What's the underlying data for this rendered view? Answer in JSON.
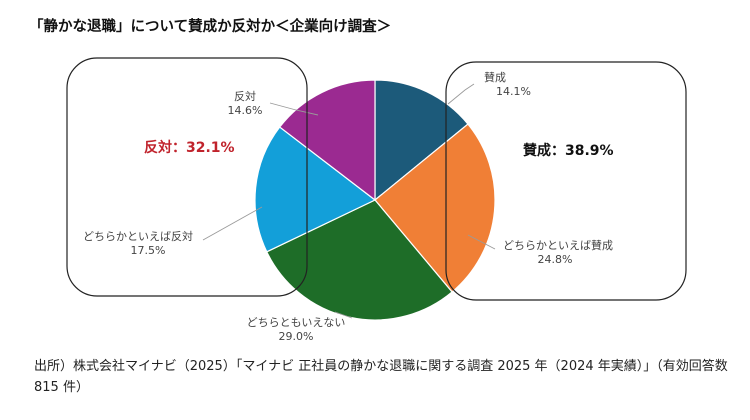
{
  "title": "「静かな退職」について賛成か反対か＜企業向け調査＞",
  "source": "出所）株式会社マイナビ（2025）「マイナビ 正社員の静かな退職に関する調査 2025 年（2024 年実績）」（有効回答数 815 件）",
  "chart_data": {
    "type": "pie",
    "title": "「静かな退職」について賛成か反対か＜企業向け調査＞",
    "unit": "%",
    "slices": [
      {
        "label": "賛成",
        "value": 14.1,
        "value_text": "14.1%",
        "color": "#1c5a7a"
      },
      {
        "label": "どちらかといえば賛成",
        "value": 24.8,
        "value_text": "24.8%",
        "color": "#f07f36"
      },
      {
        "label": "どちらともいえない",
        "value": 29.0,
        "value_text": "29.0%",
        "color": "#1e6d28"
      },
      {
        "label": "どちらかといえば反対",
        "value": 17.5,
        "value_text": "17.5%",
        "color": "#139fd9"
      },
      {
        "label": "反対",
        "value": 14.6,
        "value_text": "14.6%",
        "color": "#9b2a91"
      }
    ],
    "groups": [
      {
        "label": "賛成：38.9%",
        "color": "#111111"
      },
      {
        "label": "反対：32.1%",
        "color": "#c0232c"
      }
    ]
  }
}
